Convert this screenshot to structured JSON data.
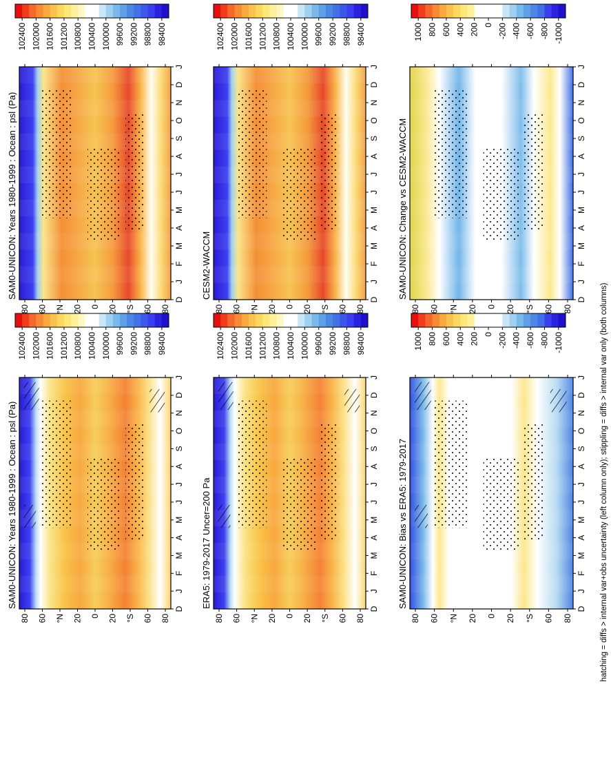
{
  "footnote": "hatching = diffs > internal var+obs uncertainty (left column only); stippling = diffs > internal var only (both columns)",
  "chart_data": [
    {
      "id": "p1",
      "type": "heatmap",
      "title": "SAM0-UNICON: Years 1980-1999 : Ocean : psl (Pa)",
      "kind": "field",
      "x_ticks": [
        "D",
        "J",
        "F",
        "M",
        "A",
        "M",
        "J",
        "J",
        "A",
        "S",
        "O",
        "N",
        "D",
        "J"
      ],
      "y_ticks": [
        "80",
        "60",
        "°N",
        "20",
        "0",
        "20",
        "°S",
        "60",
        "80"
      ],
      "colorbar": [
        "102400",
        "102000",
        "101600",
        "101200",
        "100800",
        "100400",
        "100000",
        "99600",
        "99200",
        "98800",
        "98400"
      ],
      "hatching": true
    },
    {
      "id": "p2",
      "type": "heatmap",
      "title": "SAM0-UNICON: Years 1980-1999 : Ocean : psl (Pa)",
      "kind": "field",
      "x_ticks": [
        "D",
        "J",
        "F",
        "M",
        "A",
        "M",
        "J",
        "J",
        "A",
        "S",
        "O",
        "N",
        "D",
        "J"
      ],
      "y_ticks": [
        "80",
        "60",
        "°N",
        "20",
        "0",
        "20",
        "°S",
        "60",
        "80"
      ],
      "colorbar": [
        "102400",
        "102000",
        "101600",
        "101200",
        "100800",
        "100400",
        "100000",
        "99600",
        "99200",
        "98800",
        "98400"
      ],
      "hatching": false
    },
    {
      "id": "p3",
      "type": "heatmap",
      "title": "ERA5: 1979-2017 Uncer=200 Pa",
      "kind": "field",
      "x_ticks": [
        "D",
        "J",
        "F",
        "M",
        "A",
        "M",
        "J",
        "J",
        "A",
        "S",
        "O",
        "N",
        "D",
        "J"
      ],
      "y_ticks": [
        "80",
        "60",
        "°N",
        "20",
        "0",
        "20",
        "°S",
        "60",
        "80"
      ],
      "colorbar": [
        "102400",
        "102000",
        "101600",
        "101200",
        "100800",
        "100400",
        "100000",
        "99600",
        "99200",
        "98800",
        "98400"
      ],
      "hatching": true
    },
    {
      "id": "p4",
      "type": "heatmap",
      "title": "CESM2-WACCM",
      "kind": "field",
      "x_ticks": [
        "D",
        "J",
        "F",
        "M",
        "A",
        "M",
        "J",
        "J",
        "A",
        "S",
        "O",
        "N",
        "D",
        "J"
      ],
      "y_ticks": [
        "80",
        "60",
        "°N",
        "20",
        "0",
        "20",
        "°S",
        "60",
        "80"
      ],
      "colorbar": [
        "102400",
        "102000",
        "101600",
        "101200",
        "100800",
        "100400",
        "100000",
        "99600",
        "99200",
        "98800",
        "98400"
      ],
      "hatching": false
    },
    {
      "id": "p5",
      "type": "heatmap",
      "title": "SAM0-UNICON: Bias vs ERA5: 1979-2017",
      "kind": "diff",
      "x_ticks": [
        "D",
        "J",
        "F",
        "M",
        "A",
        "M",
        "J",
        "J",
        "A",
        "S",
        "O",
        "N",
        "D",
        "J"
      ],
      "y_ticks": [
        "80",
        "60",
        "°N",
        "20",
        "0",
        "20",
        "°S",
        "60",
        "80"
      ],
      "colorbar": [
        "1000",
        "800",
        "600",
        "400",
        "200",
        "0",
        "-200",
        "-400",
        "-600",
        "-800",
        "-1000"
      ],
      "hatching": true
    },
    {
      "id": "p6",
      "type": "heatmap",
      "title": "SAM0-UNICON: Change vs CESM2-WACCM",
      "kind": "diff",
      "x_ticks": [
        "D",
        "J",
        "F",
        "M",
        "A",
        "M",
        "J",
        "J",
        "A",
        "S",
        "O",
        "N",
        "D",
        "J"
      ],
      "y_ticks": [
        "80",
        "60",
        "°N",
        "20",
        "0",
        "20",
        "°S",
        "60",
        "80"
      ],
      "colorbar": [
        "1000",
        "800",
        "600",
        "400",
        "200",
        "0",
        "-200",
        "-400",
        "-600",
        "-800",
        "-1000"
      ],
      "hatching": false
    }
  ]
}
